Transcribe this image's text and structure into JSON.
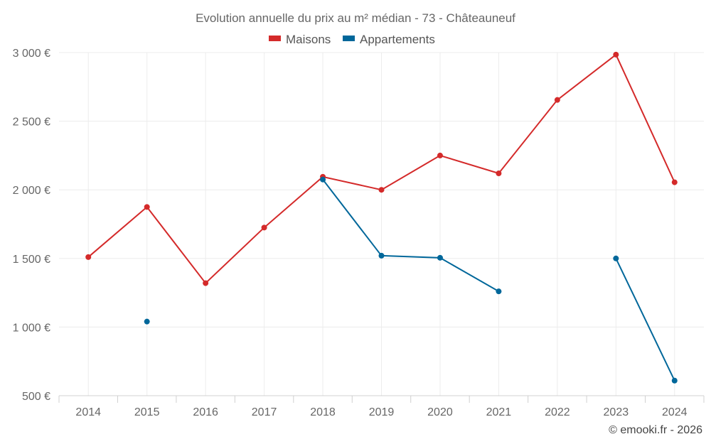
{
  "chart_data": {
    "type": "line",
    "title": "Evolution annuelle du prix au m² médian - 73 - Châteauneuf",
    "categories": [
      "2014",
      "2015",
      "2016",
      "2017",
      "2018",
      "2019",
      "2020",
      "2021",
      "2022",
      "2023",
      "2024"
    ],
    "series": [
      {
        "name": "Maisons",
        "color": "#d42a2a",
        "values": [
          1510,
          1875,
          1320,
          1725,
          2095,
          2000,
          2250,
          2120,
          2655,
          2985,
          2055
        ]
      },
      {
        "name": "Appartements",
        "color": "#00679a",
        "values": [
          null,
          1040,
          null,
          null,
          2075,
          1520,
          1505,
          1260,
          null,
          1500,
          610
        ]
      }
    ],
    "ylim": [
      500,
      3000
    ],
    "yticks": [
      500,
      1000,
      1500,
      2000,
      2500,
      3000
    ],
    "ytick_labels": [
      "500 €",
      "1 000 €",
      "1 500 €",
      "2 000 €",
      "2 500 €",
      "3 000 €"
    ],
    "xlabel": "",
    "ylabel": "",
    "grid": true,
    "legend_position": "top-center",
    "credit": "© emooki.fr - 2026"
  }
}
